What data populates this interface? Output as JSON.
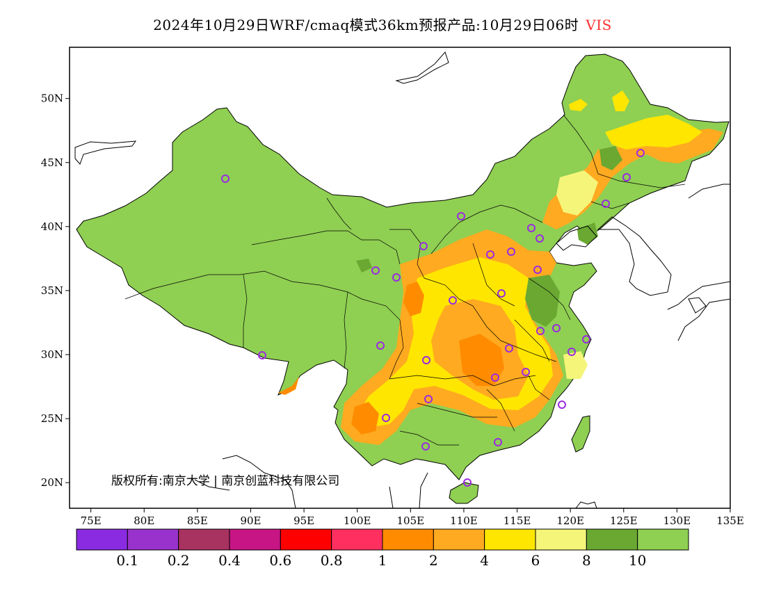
{
  "title": {
    "main": "2024年10月29日WRF/cmaq模式36km预报产品:10月29日06时",
    "variable": "VIS",
    "variable_color": "#ff3030"
  },
  "map": {
    "lon_range": [
      73,
      135
    ],
    "lat_range": [
      18,
      54
    ],
    "lon_ticks": [
      "75E",
      "80E",
      "85E",
      "90E",
      "95E",
      "100E",
      "105E",
      "110E",
      "115E",
      "120E",
      "125E",
      "130E",
      "135E"
    ],
    "lat_ticks": [
      "20N",
      "25N",
      "30N",
      "35N",
      "40N",
      "45N",
      "50N"
    ],
    "copyright": "版权所有:南京大学 | 南京创蓝科技有限公司",
    "land_color": "#8fcf52",
    "station_marker_color": "#9a2be2"
  },
  "colorbar": {
    "colors": [
      "#8a2be2",
      "#9932cc",
      "#a83260",
      "#c71585",
      "#ff0000",
      "#ff3060",
      "#ff8c00",
      "#ffaa20",
      "#ffe600",
      "#f5f57a",
      "#6aa832",
      "#8fcf52"
    ],
    "labels": [
      "0.1",
      "0.2",
      "0.4",
      "0.6",
      "0.8",
      "1",
      "2",
      "4",
      "6",
      "8",
      "10"
    ]
  }
}
